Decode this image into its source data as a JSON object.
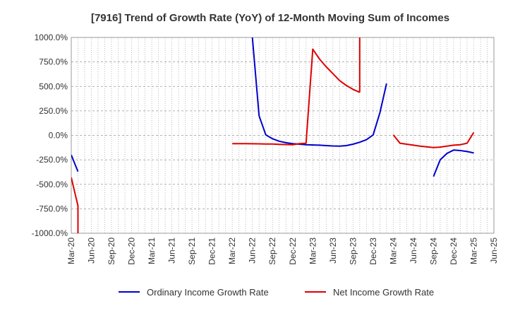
{
  "chart_data": {
    "type": "line",
    "title": "[7916]  Trend of Growth Rate (YoY) of 12-Month Moving Sum of Incomes",
    "xlabel": "",
    "ylabel": "",
    "ylim": [
      -1000,
      1000
    ],
    "y_ticks": [
      1000,
      750,
      500,
      250,
      0,
      -250,
      -500,
      -750,
      -1000
    ],
    "y_tick_labels": [
      "1000.0%",
      "750.0%",
      "500.0%",
      "250.0%",
      "0.0%",
      "-250.0%",
      "-500.0%",
      "-750.0%",
      "-1000.0%"
    ],
    "x_tick_labels": [
      "Mar-20",
      "Jun-20",
      "Sep-20",
      "Dec-20",
      "Mar-21",
      "Jun-21",
      "Sep-21",
      "Dec-21",
      "Mar-22",
      "Jun-22",
      "Sep-22",
      "Dec-22",
      "Mar-23",
      "Jun-23",
      "Sep-23",
      "Dec-23",
      "Mar-24",
      "Jun-24",
      "Sep-24",
      "Dec-24",
      "Mar-25",
      "Jun-25"
    ],
    "x_range": [
      "2020-03",
      "2025-06"
    ],
    "grid": true,
    "legend_position": "bottom",
    "series": [
      {
        "name": "Ordinary Income Growth Rate",
        "color": "#0000cc",
        "points": [
          [
            "2020-03",
            -200
          ],
          [
            "2020-04",
            -370
          ],
          null,
          [
            "2022-06",
            1000
          ],
          [
            "2022-07",
            200
          ],
          [
            "2022-08",
            5
          ],
          [
            "2022-09",
            -35
          ],
          [
            "2022-10",
            -60
          ],
          [
            "2022-11",
            -75
          ],
          [
            "2022-12",
            -85
          ],
          [
            "2023-01",
            -90
          ],
          [
            "2023-02",
            -95
          ],
          [
            "2023-03",
            -98
          ],
          [
            "2023-04",
            -100
          ],
          [
            "2023-05",
            -105
          ],
          [
            "2023-06",
            -108
          ],
          [
            "2023-07",
            -110
          ],
          [
            "2023-08",
            -105
          ],
          [
            "2023-09",
            -90
          ],
          [
            "2023-10",
            -70
          ],
          [
            "2023-11",
            -45
          ],
          [
            "2023-12",
            5
          ],
          [
            "2024-01",
            230
          ],
          [
            "2024-02",
            530
          ],
          null,
          [
            "2024-09",
            -420
          ],
          [
            "2024-10",
            -250
          ],
          [
            "2024-11",
            -185
          ],
          [
            "2024-12",
            -150
          ],
          [
            "2025-01",
            -155
          ],
          [
            "2025-02",
            -165
          ],
          [
            "2025-03",
            -180
          ]
        ]
      },
      {
        "name": "Net Income Growth Rate",
        "color": "#dd0000",
        "points": [
          [
            "2020-03",
            -430
          ],
          [
            "2020-04",
            -720
          ],
          [
            "2020-04",
            -1000
          ],
          null,
          [
            "2022-03",
            -85
          ],
          [
            "2022-04",
            -85
          ],
          [
            "2022-05",
            -85
          ],
          [
            "2022-06",
            -86
          ],
          [
            "2022-07",
            -87
          ],
          [
            "2022-08",
            -88
          ],
          [
            "2022-09",
            -89
          ],
          [
            "2022-10",
            -92
          ],
          [
            "2022-11",
            -94
          ],
          [
            "2022-12",
            -95
          ],
          [
            "2023-01",
            -85
          ],
          [
            "2023-02",
            -80
          ],
          [
            "2023-03",
            880
          ],
          [
            "2023-04",
            780
          ],
          [
            "2023-05",
            700
          ],
          [
            "2023-06",
            630
          ],
          [
            "2023-07",
            560
          ],
          [
            "2023-08",
            510
          ],
          [
            "2023-09",
            470
          ],
          [
            "2023-10",
            440
          ],
          null,
          [
            "2023-10",
            1000
          ],
          [
            "2023-10",
            440
          ],
          null,
          [
            "2024-03",
            5
          ],
          [
            "2024-04",
            -80
          ],
          [
            "2024-05",
            -90
          ],
          [
            "2024-06",
            -100
          ],
          [
            "2024-07",
            -110
          ],
          [
            "2024-08",
            -118
          ],
          [
            "2024-09",
            -125
          ],
          [
            "2024-10",
            -120
          ],
          [
            "2024-11",
            -110
          ],
          [
            "2024-12",
            -100
          ],
          [
            "2025-01",
            -95
          ],
          [
            "2025-02",
            -80
          ],
          [
            "2025-03",
            30
          ]
        ]
      }
    ]
  }
}
